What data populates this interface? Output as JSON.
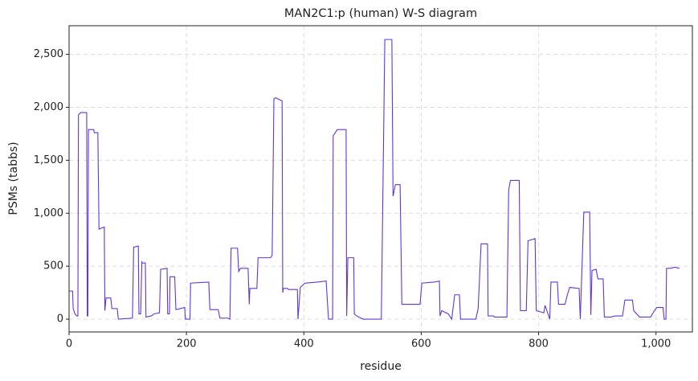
{
  "chart_data": {
    "type": "line",
    "title": "MAN2C1:p (human) W-S diagram",
    "x_label": "residue",
    "y_label": "PSMs (tabbs)",
    "color": "#6236d6",
    "grid": true,
    "xlim": [
      0,
      1062
    ],
    "ylim": [
      -121,
      2770
    ],
    "xticks": [
      0,
      200,
      400,
      600,
      800,
      {
        "value": 1000,
        "label": "1,000"
      }
    ],
    "yticks": [
      0,
      500,
      {
        "value": 1000,
        "label": "1,000"
      },
      {
        "value": 1500,
        "label": "1,500"
      },
      {
        "value": 2000,
        "label": "2,000"
      },
      {
        "value": 2500,
        "label": "2,500"
      }
    ],
    "x": [
      0,
      6,
      7,
      10,
      13,
      15,
      16,
      20,
      30,
      31,
      32,
      33,
      42,
      43,
      49,
      51,
      60,
      61,
      63,
      71,
      73,
      82,
      84,
      108,
      110,
      111,
      118,
      119,
      122,
      124,
      125,
      130,
      131,
      140,
      145,
      154,
      156,
      167,
      168,
      171,
      172,
      180,
      182,
      197,
      198,
      206,
      207,
      238,
      240,
      254,
      257,
      270,
      274,
      276,
      287,
      289,
      292,
      305,
      307,
      308,
      320,
      322,
      343,
      346,
      349,
      352,
      363,
      364,
      365,
      372,
      374,
      389,
      390,
      394,
      402,
      423,
      438,
      442,
      449,
      450,
      457,
      472,
      473,
      475,
      485,
      486,
      490,
      501,
      532,
      538,
      550,
      552,
      556,
      564,
      567,
      598,
      601,
      622,
      631,
      632,
      635,
      646,
      652,
      657,
      665,
      667,
      693,
      697,
      702,
      713,
      714,
      723,
      725,
      746,
      749,
      752,
      767,
      769,
      779,
      782,
      794,
      796,
      809,
      811,
      819,
      821,
      832,
      834,
      845,
      849,
      853,
      869,
      871,
      877,
      887,
      889,
      891,
      898,
      901,
      910,
      912,
      923,
      930,
      943,
      947,
      960,
      962,
      972,
      991,
      995,
      1001,
      1012,
      1014,
      1017,
      1018,
      1025,
      1032,
      1040
    ],
    "values": [
      265,
      265,
      100,
      50,
      30,
      30,
      1930,
      1950,
      1950,
      30,
      30,
      1790,
      1790,
      1760,
      1760,
      850,
      870,
      80,
      200,
      200,
      100,
      100,
      0,
      10,
      680,
      680,
      690,
      50,
      50,
      540,
      530,
      530,
      20,
      30,
      50,
      60,
      470,
      480,
      50,
      50,
      400,
      400,
      90,
      110,
      0,
      0,
      340,
      350,
      90,
      90,
      10,
      10,
      0,
      670,
      670,
      450,
      480,
      480,
      140,
      290,
      290,
      580,
      580,
      600,
      2080,
      2090,
      2060,
      250,
      290,
      290,
      280,
      280,
      0,
      300,
      340,
      350,
      360,
      0,
      0,
      1730,
      1790,
      1790,
      30,
      580,
      580,
      50,
      30,
      0,
      0,
      2640,
      2640,
      1160,
      1270,
      1270,
      140,
      140,
      340,
      350,
      360,
      30,
      80,
      50,
      0,
      230,
      230,
      0,
      0,
      100,
      710,
      710,
      30,
      30,
      20,
      20,
      1220,
      1310,
      1310,
      80,
      80,
      740,
      760,
      80,
      60,
      130,
      0,
      350,
      350,
      140,
      140,
      230,
      300,
      290,
      0,
      1010,
      1010,
      40,
      460,
      470,
      380,
      380,
      20,
      20,
      30,
      30,
      180,
      180,
      80,
      20,
      20,
      60,
      110,
      110,
      0,
      0,
      480,
      480,
      490,
      480
    ]
  }
}
